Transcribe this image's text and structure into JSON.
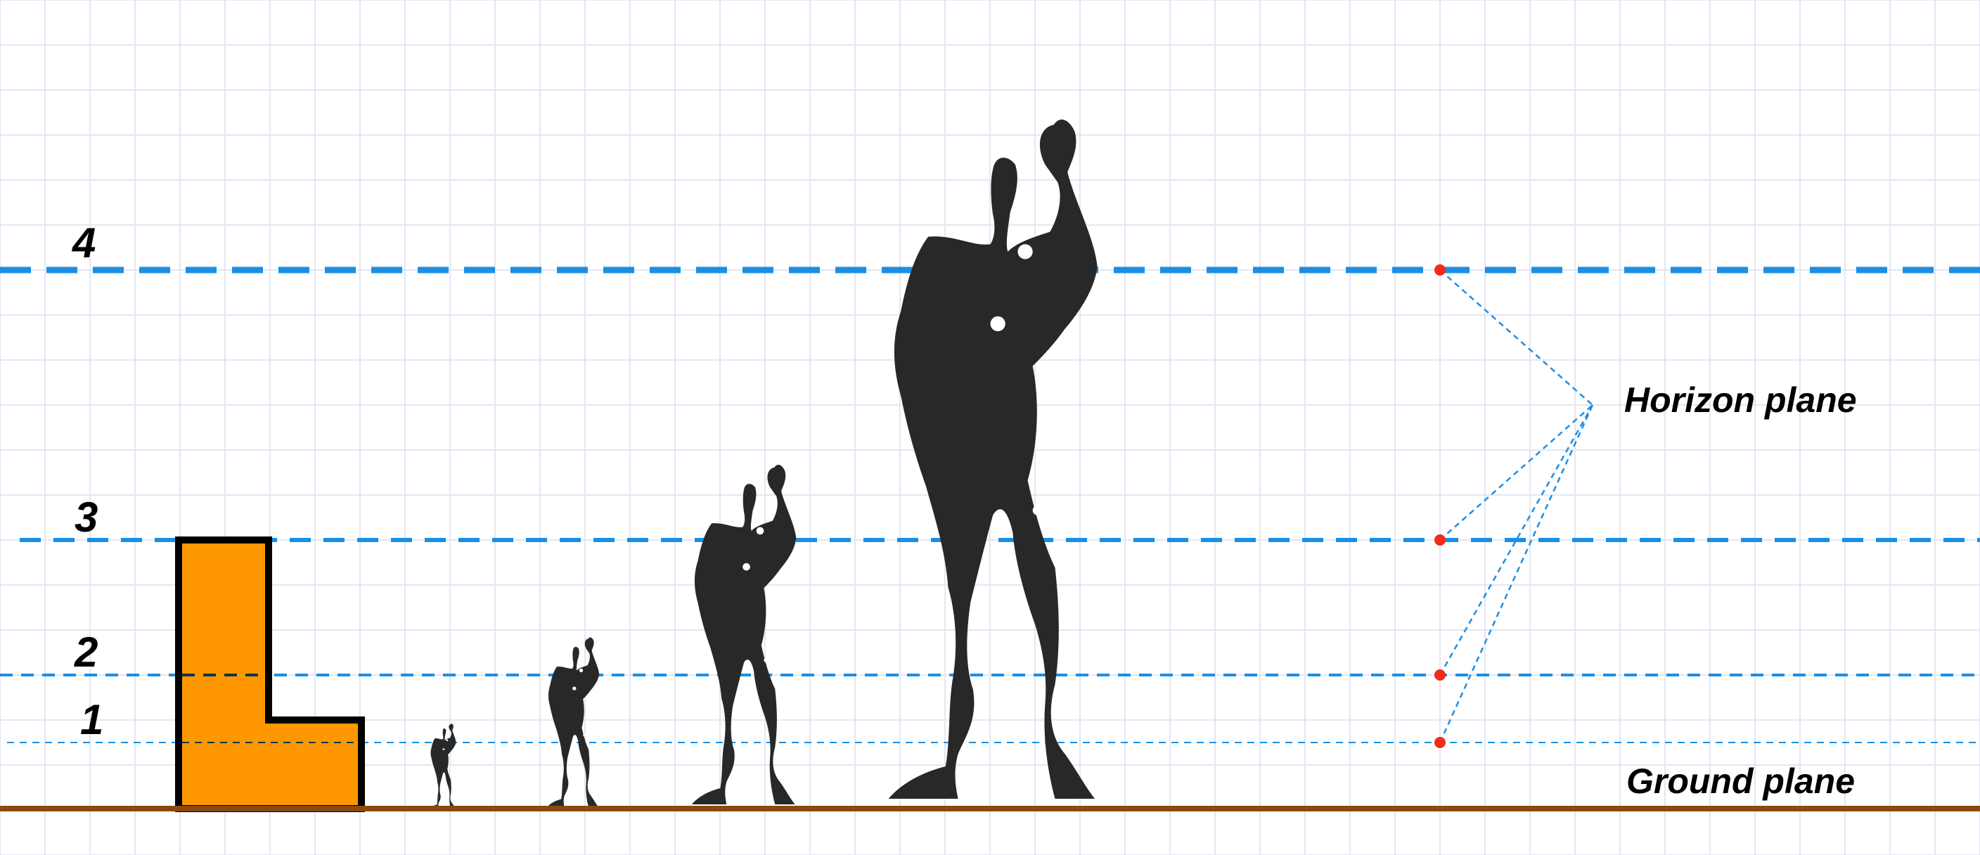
{
  "colors": {
    "background": "#ffffff",
    "grid": "#e3e5f3",
    "horizon_line": "#1a8fe6",
    "vanishing_point": "#f52a1a",
    "ground": "#8b4a0c",
    "block_fill": "#ff9800",
    "block_stroke": "#000000",
    "figure": "#282828"
  },
  "level_labels": [
    {
      "text": "1"
    },
    {
      "text": "2"
    },
    {
      "text": "3"
    },
    {
      "text": "4"
    }
  ],
  "plane_labels": {
    "horizon": "Horizon plane",
    "ground": "Ground plane"
  },
  "figures": [
    {
      "name": "modulor-figure-1",
      "reaches_level": 1
    },
    {
      "name": "modulor-figure-2",
      "reaches_level": 2
    },
    {
      "name": "modulor-figure-3",
      "reaches_level": 3
    },
    {
      "name": "modulor-figure-4",
      "reaches_level": 4
    }
  ],
  "icons": {
    "figure": "modulor-man-silhouette",
    "block": "l-shaped-block"
  }
}
